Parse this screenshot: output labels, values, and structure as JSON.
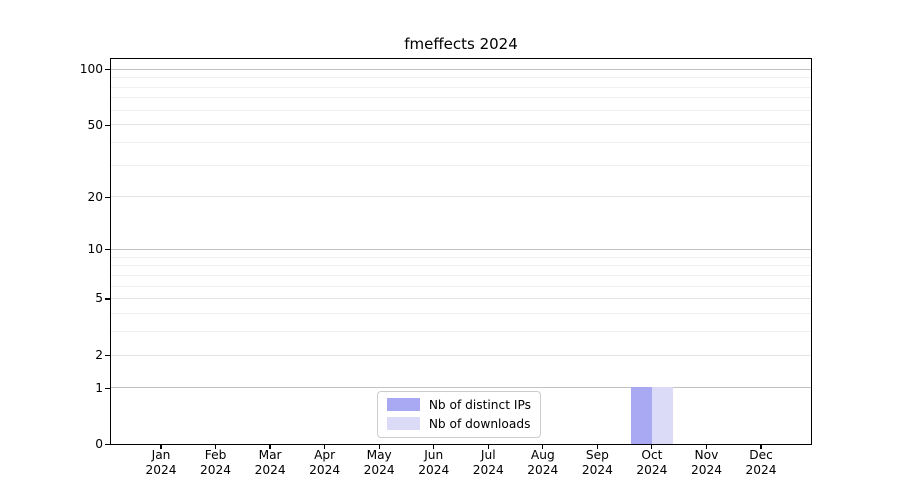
{
  "chart_data": {
    "type": "bar",
    "title": "fmeffects 2024",
    "categories": [
      "Jan 2024",
      "Feb 2024",
      "Mar 2024",
      "Apr 2024",
      "May 2024",
      "Jun 2024",
      "Jul 2024",
      "Aug 2024",
      "Sep 2024",
      "Oct 2024",
      "Nov 2024",
      "Dec 2024"
    ],
    "series": [
      {
        "name": "Nb of distinct IPs",
        "color": "#a8a8f3",
        "values": [
          0,
          0,
          0,
          0,
          0,
          0,
          0,
          0,
          0,
          1,
          0,
          0
        ]
      },
      {
        "name": "Nb of downloads",
        "color": "#dbdbf8",
        "values": [
          0,
          0,
          0,
          0,
          0,
          0,
          0,
          0,
          0,
          1,
          0,
          0
        ]
      }
    ],
    "xlabel": "",
    "ylabel": "",
    "yscale": "log1p",
    "ylim": [
      0,
      113
    ],
    "yticks": [
      0,
      1,
      2,
      5,
      10,
      20,
      50,
      100
    ],
    "yticks_decade": [
      1,
      10,
      100
    ],
    "yticks_minor": [
      3,
      4,
      6,
      7,
      8,
      9,
      30,
      40,
      60,
      70,
      80,
      90
    ],
    "grid": "horizontal",
    "legend_position": "lower center"
  },
  "colors": {
    "axis": "#000000",
    "decade_grid": "#c2c2c2",
    "major_grid": "#e4e4e4",
    "minor_grid": "#efefef",
    "background": "#ffffff",
    "legend_border": "#cccccc"
  }
}
